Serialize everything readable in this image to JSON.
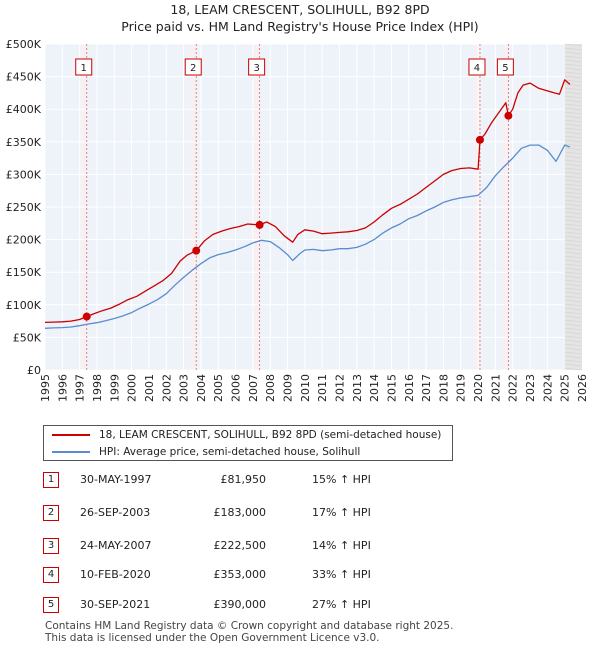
{
  "title_line1": "18, LEAM CRESCENT, SOLIHULL, B92 8PD",
  "title_line2": "Price paid vs. HM Land Registry's House Price Index (HPI)",
  "chart_data": {
    "type": "line",
    "title": "18, LEAM CRESCENT, SOLIHULL, B92 8PD — Price paid vs. HM Land Registry's House Price Index (HPI)",
    "xlabel": "",
    "ylabel": "",
    "xlim": [
      1995,
      2026
    ],
    "ylim": [
      0,
      500000
    ],
    "y_ticks": [
      {
        "v": 0,
        "label": "£0"
      },
      {
        "v": 50000,
        "label": "£50K"
      },
      {
        "v": 100000,
        "label": "£100K"
      },
      {
        "v": 150000,
        "label": "£150K"
      },
      {
        "v": 200000,
        "label": "£200K"
      },
      {
        "v": 250000,
        "label": "£250K"
      },
      {
        "v": 300000,
        "label": "£300K"
      },
      {
        "v": 350000,
        "label": "£350K"
      },
      {
        "v": 400000,
        "label": "£400K"
      },
      {
        "v": 450000,
        "label": "£450K"
      },
      {
        "v": 500000,
        "label": "£500K"
      }
    ],
    "x_ticks": [
      1995,
      1996,
      1997,
      1998,
      1999,
      2000,
      2001,
      2002,
      2003,
      2004,
      2005,
      2006,
      2007,
      2008,
      2009,
      2010,
      2011,
      2012,
      2013,
      2014,
      2015,
      2016,
      2017,
      2018,
      2019,
      2020,
      2021,
      2022,
      2023,
      2024,
      2025,
      2026
    ],
    "forecast_from": 2025.0,
    "series": [
      {
        "name": "18, LEAM CRESCENT, SOLIHULL, B92 8PD (semi-detached house)",
        "color": "#cc0000",
        "x": [
          1995.0,
          1995.5,
          1996.0,
          1996.5,
          1997.0,
          1997.41,
          1997.8,
          1998.3,
          1998.8,
          1999.3,
          1999.8,
          2000.3,
          2000.8,
          2001.3,
          2001.8,
          2002.3,
          2002.8,
          2003.2,
          2003.73,
          2004.2,
          2004.7,
          2005.2,
          2005.7,
          2006.2,
          2006.7,
          2007.39,
          2007.8,
          2008.3,
          2008.8,
          2009.3,
          2009.6,
          2010.0,
          2010.5,
          2011.0,
          2011.5,
          2012.0,
          2012.5,
          2013.0,
          2013.5,
          2014.0,
          2014.5,
          2015.0,
          2015.5,
          2016.0,
          2016.5,
          2017.0,
          2017.5,
          2018.0,
          2018.5,
          2019.0,
          2019.5,
          2020.0,
          2020.11,
          2020.4,
          2020.8,
          2021.2,
          2021.6,
          2021.75,
          2022.0,
          2022.3,
          2022.6,
          2023.0,
          2023.5,
          2024.0,
          2024.4,
          2024.7,
          2025.0,
          2025.3
        ],
        "y": [
          73000,
          73500,
          74000,
          75000,
          77500,
          81950,
          86000,
          91000,
          95000,
          101000,
          108000,
          113000,
          121000,
          129000,
          137000,
          148000,
          167000,
          176000,
          183000,
          198000,
          208000,
          213000,
          217000,
          220000,
          224000,
          222500,
          227000,
          220000,
          206000,
          196000,
          208000,
          215000,
          213000,
          209000,
          210000,
          211000,
          212000,
          214000,
          218000,
          227000,
          238000,
          248000,
          254000,
          262000,
          270000,
          280000,
          290000,
          300000,
          306000,
          309000,
          310000,
          308000,
          353000,
          362000,
          380000,
          395000,
          410000,
          390000,
          400000,
          425000,
          437000,
          440000,
          432000,
          428000,
          425000,
          423000,
          445000,
          438000
        ]
      },
      {
        "name": "HPI: Average price, semi-detached house, Solihull",
        "color": "#5b8ccf",
        "x": [
          1995.0,
          1995.5,
          1996.0,
          1996.5,
          1997.0,
          1997.5,
          1998.0,
          1998.5,
          1999.0,
          1999.5,
          2000.0,
          2000.5,
          2001.0,
          2001.5,
          2002.0,
          2002.5,
          2003.0,
          2003.5,
          2004.0,
          2004.5,
          2005.0,
          2005.5,
          2006.0,
          2006.5,
          2007.0,
          2007.5,
          2008.0,
          2008.5,
          2009.0,
          2009.3,
          2009.7,
          2010.0,
          2010.5,
          2011.0,
          2011.5,
          2012.0,
          2012.5,
          2013.0,
          2013.5,
          2014.0,
          2014.5,
          2015.0,
          2015.5,
          2016.0,
          2016.5,
          2017.0,
          2017.5,
          2018.0,
          2018.5,
          2019.0,
          2019.5,
          2020.0,
          2020.5,
          2021.0,
          2021.5,
          2022.0,
          2022.5,
          2023.0,
          2023.5,
          2024.0,
          2024.5,
          2025.0,
          2025.3
        ],
        "y": [
          64000,
          64500,
          65000,
          66000,
          68000,
          70500,
          72500,
          75500,
          79000,
          83000,
          88000,
          95000,
          101000,
          108000,
          117000,
          130000,
          142000,
          153000,
          163000,
          172000,
          177000,
          180000,
          184000,
          189000,
          195000,
          199000,
          197000,
          188000,
          177000,
          168000,
          178000,
          184000,
          185000,
          183000,
          184000,
          186000,
          186000,
          188000,
          193000,
          200000,
          210000,
          218000,
          224000,
          232000,
          237000,
          244000,
          250000,
          257000,
          261000,
          264000,
          266000,
          268000,
          280000,
          298000,
          312000,
          325000,
          340000,
          345000,
          345000,
          337000,
          320000,
          345000,
          342000
        ]
      }
    ],
    "sales": [
      {
        "n": "1",
        "x": 1997.41,
        "y": 81950
      },
      {
        "n": "2",
        "x": 2003.73,
        "y": 183000
      },
      {
        "n": "3",
        "x": 2007.39,
        "y": 222500
      },
      {
        "n": "4",
        "x": 2020.11,
        "y": 353000
      },
      {
        "n": "5",
        "x": 2021.75,
        "y": 390000
      }
    ]
  },
  "legend": {
    "property": "18, LEAM CRESCENT, SOLIHULL, B92 8PD (semi-detached house)",
    "hpi": "HPI: Average price, semi-detached house, Solihull"
  },
  "sales_table": [
    {
      "n": "1",
      "date": "30-MAY-1997",
      "price": "£81,950",
      "hpi": "15% ↑ HPI"
    },
    {
      "n": "2",
      "date": "26-SEP-2003",
      "price": "£183,000",
      "hpi": "17% ↑ HPI"
    },
    {
      "n": "3",
      "date": "24-MAY-2007",
      "price": "£222,500",
      "hpi": "14% ↑ HPI"
    },
    {
      "n": "4",
      "date": "10-FEB-2020",
      "price": "£353,000",
      "hpi": "33% ↑ HPI"
    },
    {
      "n": "5",
      "date": "30-SEP-2021",
      "price": "£390,000",
      "hpi": "27% ↑ HPI"
    }
  ],
  "footer_line1": "Contains HM Land Registry data © Crown copyright and database right 2025.",
  "footer_line2": "This data is licensed under the Open Government Licence v3.0."
}
